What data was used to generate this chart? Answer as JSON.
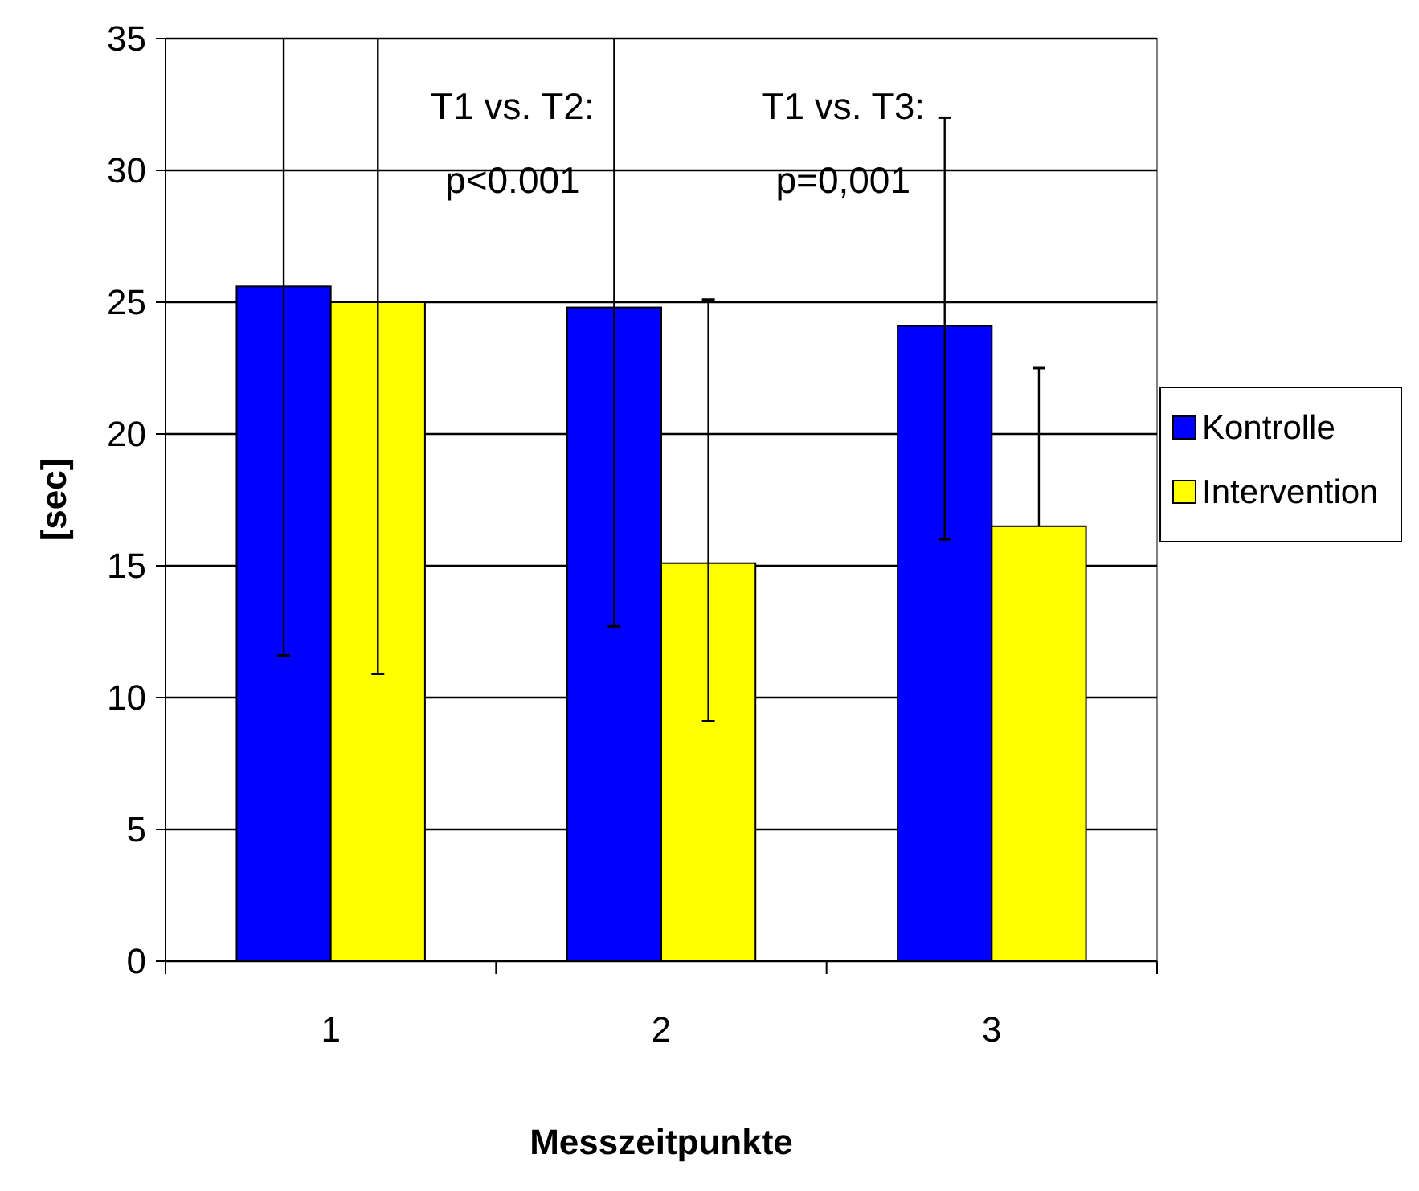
{
  "chart_data": {
    "type": "bar",
    "xlabel": "Messzeitpunkte",
    "ylabel": "[sec]",
    "categories": [
      "1",
      "2",
      "3"
    ],
    "series": [
      {
        "name": "Kontrolle",
        "color": "#0000ff",
        "values": [
          25.6,
          24.8,
          24.1
        ],
        "errors": [
          [
            11.6,
            35
          ],
          [
            12.7,
            35
          ],
          [
            16,
            32
          ]
        ]
      },
      {
        "name": "Intervention",
        "color": "#ffff00",
        "values": [
          25,
          15.1,
          16.5
        ],
        "errors": [
          [
            10.9,
            35
          ],
          [
            9.1,
            25.1
          ],
          [
            16.5,
            22.5
          ]
        ]
      }
    ],
    "ylim": [
      0,
      35
    ],
    "yticks": [
      0,
      5,
      10,
      15,
      20,
      25,
      30,
      35
    ],
    "grid": "y",
    "legend": "right",
    "annotations": [
      "T1 vs. T2:\np<0.001",
      "T1 vs. T3:\np=0,001"
    ]
  }
}
